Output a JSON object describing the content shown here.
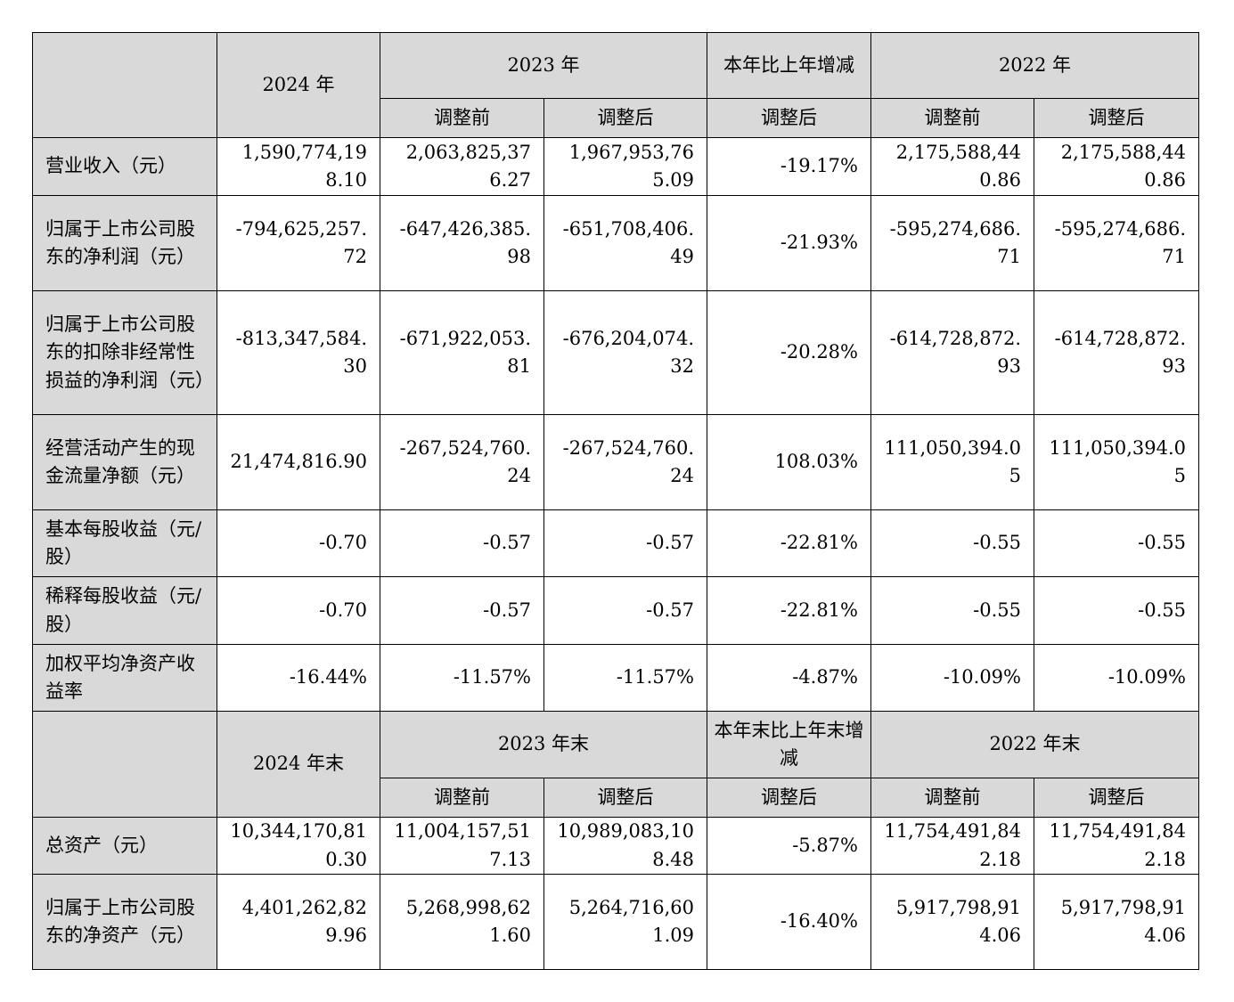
{
  "section1": {
    "year_current": "2024 年",
    "year_prior": "2023 年",
    "change_header": "本年比上年增减",
    "year_prior2": "2022 年",
    "before_adj": "调整前",
    "after_adj": "调整后"
  },
  "section2": {
    "year_current": "2024 年末",
    "year_prior": "2023 年末",
    "change_header": "本年末比上年末增减",
    "year_prior2": "2022 年末",
    "before_adj": "调整前",
    "after_adj": "调整后"
  },
  "rows1": [
    {
      "label": "营业收入（元）",
      "v2024": "1,590,774,198.10",
      "v2023_before": "2,063,825,376.27",
      "v2023_after": "1,967,953,765.09",
      "change": "-19.17%",
      "v2022_before": "2,175,588,440.86",
      "v2022_after": "2,175,588,440.86"
    },
    {
      "label": "归属于上市公司股东的净利润（元）",
      "v2024": "-794,625,257.72",
      "v2023_before": "-647,426,385.98",
      "v2023_after": "-651,708,406.49",
      "change": "-21.93%",
      "v2022_before": "-595,274,686.71",
      "v2022_after": "-595,274,686.71"
    },
    {
      "label": "归属于上市公司股东的扣除非经常性损益的净利润（元）",
      "v2024": "-813,347,584.30",
      "v2023_before": "-671,922,053.81",
      "v2023_after": "-676,204,074.32",
      "change": "-20.28%",
      "v2022_before": "-614,728,872.93",
      "v2022_after": "-614,728,872.93"
    },
    {
      "label": "经营活动产生的现金流量净额（元）",
      "v2024": "21,474,816.90",
      "v2023_before": "-267,524,760.24",
      "v2023_after": "-267,524,760.24",
      "change": "108.03%",
      "v2022_before": "111,050,394.05",
      "v2022_after": "111,050,394.05"
    },
    {
      "label": "基本每股收益（元/股）",
      "v2024": "-0.70",
      "v2023_before": "-0.57",
      "v2023_after": "-0.57",
      "change": "-22.81%",
      "v2022_before": "-0.55",
      "v2022_after": "-0.55"
    },
    {
      "label": "稀释每股收益（元/股）",
      "v2024": "-0.70",
      "v2023_before": "-0.57",
      "v2023_after": "-0.57",
      "change": "-22.81%",
      "v2022_before": "-0.55",
      "v2022_after": "-0.55"
    },
    {
      "label": "加权平均净资产收益率",
      "v2024": "-16.44%",
      "v2023_before": "-11.57%",
      "v2023_after": "-11.57%",
      "change": "-4.87%",
      "v2022_before": "-10.09%",
      "v2022_after": "-10.09%"
    }
  ],
  "rows2": [
    {
      "label": "总资产（元）",
      "v2024": "10,344,170,810.30",
      "v2023_before": "11,004,157,517.13",
      "v2023_after": "10,989,083,108.48",
      "change": "-5.87%",
      "v2022_before": "11,754,491,842.18",
      "v2022_after": "11,754,491,842.18"
    },
    {
      "label": "归属于上市公司股东的净资产（元）",
      "v2024": "4,401,262,829.96",
      "v2023_before": "5,268,998,621.60",
      "v2023_after": "5,264,716,601.09",
      "change": "-16.40%",
      "v2022_before": "5,917,798,914.06",
      "v2022_after": "5,917,798,914.06"
    }
  ]
}
